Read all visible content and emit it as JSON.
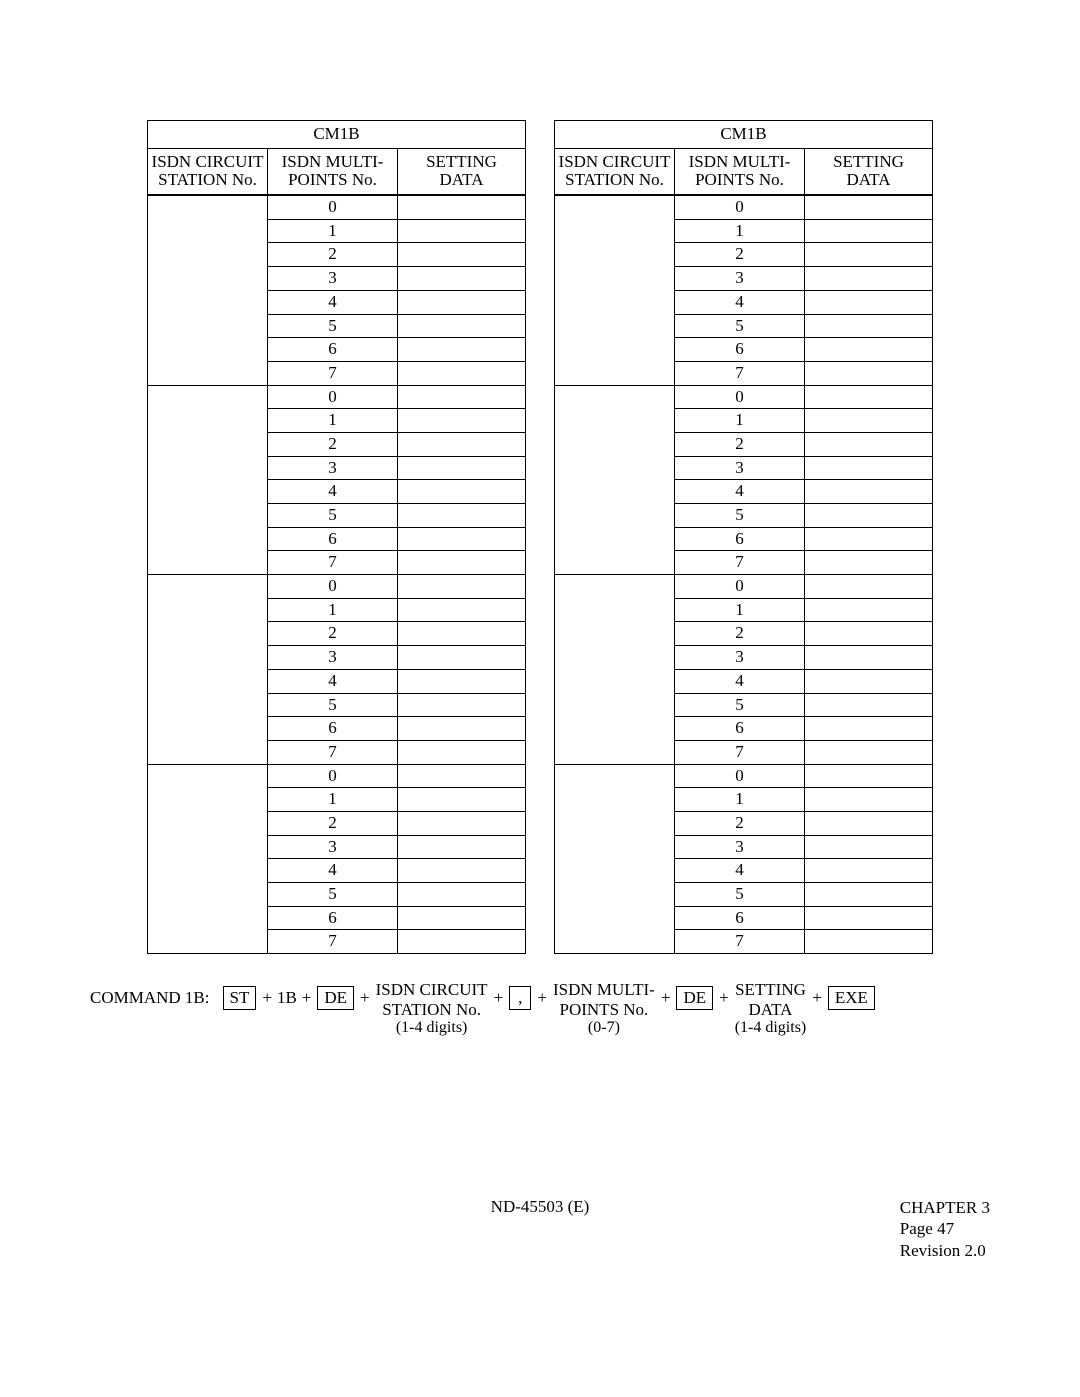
{
  "table": {
    "title": "CM1B",
    "header": {
      "col1_line1": "ISDN CIRCUIT",
      "col1_line2": "STATION No.",
      "col2_line1": "ISDN MULTI-",
      "col2_line2": "POINTS No.",
      "col3_line1": "SETTING",
      "col3_line2": "DATA"
    },
    "groups": 4,
    "points": [
      "0",
      "1",
      "2",
      "3",
      "4",
      "5",
      "6",
      "7"
    ]
  },
  "command": {
    "label": "COMMAND 1B:",
    "keys": {
      "st": "ST",
      "de": "DE",
      "comma": ",",
      "exe": "EXE"
    },
    "plus": "+",
    "oneB": "1B",
    "field1": {
      "l1": "ISDN CIRCUIT",
      "l2": "STATION No.",
      "l3": "(1-4 digits)"
    },
    "field2": {
      "l1": "ISDN MULTI-",
      "l2": "POINTS No.",
      "l3": "(0-7)"
    },
    "field3": {
      "l1": "SETTING",
      "l2": "DATA",
      "l3": "(1-4 digits)"
    }
  },
  "footer": {
    "doc": "ND-45503 (E)",
    "chapter": "CHAPTER 3",
    "page": "Page 47",
    "revision": "Revision 2.0"
  }
}
